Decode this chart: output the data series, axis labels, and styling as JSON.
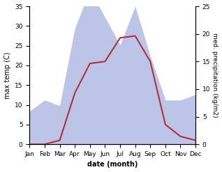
{
  "months": [
    "Jan",
    "Feb",
    "Mar",
    "Apr",
    "May",
    "Jun",
    "Jul",
    "Aug",
    "Sep",
    "Oct",
    "Nov",
    "Dec"
  ],
  "temp": [
    0,
    0,
    1,
    13,
    20.5,
    21,
    27,
    27.5,
    21,
    5,
    2,
    1
  ],
  "precip": [
    6,
    8,
    7,
    21,
    28,
    23,
    18,
    25,
    16,
    8,
    8,
    9
  ],
  "temp_color": "#b03040",
  "precip_fill_color": "#bcc5e8",
  "ylim_temp": [
    0,
    35
  ],
  "ylim_precip": [
    0,
    25
  ],
  "yticks_temp": [
    0,
    5,
    10,
    15,
    20,
    25,
    30,
    35
  ],
  "yticks_precip": [
    0,
    5,
    10,
    15,
    20,
    25
  ],
  "xlabel": "date (month)",
  "ylabel_left": "max temp (C)",
  "ylabel_right": "med. precipitation (kg/m2)",
  "bg_color": "#ffffff",
  "label_fontsize": 7,
  "tick_fontsize": 6.5,
  "linewidth": 1.5
}
